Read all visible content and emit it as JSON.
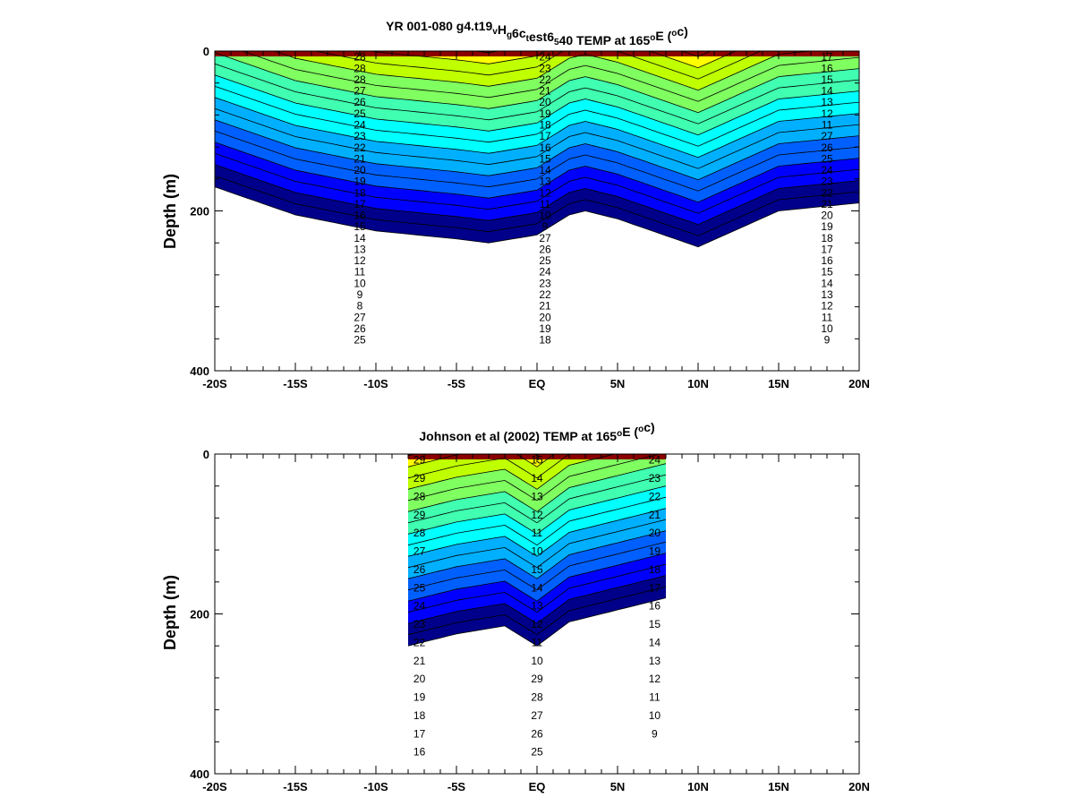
{
  "chart_data": [
    {
      "type": "heatmap",
      "title_parts": [
        "YR 001-080 g4.t19",
        "v",
        "H",
        "g",
        "6c",
        "t",
        "est6",
        "5",
        "40 TEMP at 165",
        "o",
        "E (",
        "o",
        "c)"
      ],
      "ylabel": "Depth (m)",
      "y_ticks": [
        "0",
        "200",
        "400"
      ],
      "x_ticks": [
        "-20S",
        "-15S",
        "-10S",
        "-5S",
        "EQ",
        "5N",
        "10N",
        "15N",
        "20N"
      ],
      "xlim": [
        -20,
        20
      ],
      "ylim": [
        0,
        400
      ],
      "data_extent": {
        "lat": [
          -20,
          20
        ],
        "depth": [
          0,
          380
        ]
      },
      "z_units": "°C",
      "thermocline_profile": {
        "lat": [
          -20,
          -15,
          -10,
          -5,
          -3,
          0,
          2,
          3,
          5,
          10,
          15,
          20
        ],
        "depth": [
          140,
          175,
          195,
          205,
          210,
          200,
          175,
          170,
          180,
          215,
          170,
          160
        ]
      },
      "contour_labels": [
        "28",
        "28",
        "28",
        "27",
        "26",
        "25",
        "24",
        "23",
        "22",
        "21",
        "20",
        "19",
        "18",
        "17",
        "16",
        "15",
        "14",
        "13",
        "12",
        "11",
        "10",
        "9",
        "8",
        "27",
        "26",
        "25",
        "24",
        "23",
        "22",
        "21",
        "20",
        "19",
        "18",
        "17",
        "16",
        "15",
        "14",
        "13",
        "12",
        "11",
        "10",
        "9",
        "27",
        "26",
        "25",
        "24",
        "23",
        "22",
        "21",
        "20",
        "19",
        "18",
        "17",
        "16",
        "15",
        "14",
        "13",
        "12",
        "11",
        "27",
        "26",
        "25",
        "24",
        "23",
        "22",
        "21",
        "20",
        "19",
        "18",
        "17",
        "16",
        "15",
        "14",
        "13",
        "12",
        "11",
        "10",
        "9"
      ]
    },
    {
      "type": "heatmap",
      "title_parts": [
        "Johnson et al (2002) TEMP at 165",
        "o",
        "E (",
        "o",
        "c)"
      ],
      "ylabel": "Depth (m)",
      "y_ticks": [
        "0",
        "200",
        "400"
      ],
      "x_ticks": [
        "-20S",
        "-15S",
        "-10S",
        "-5S",
        "EQ",
        "5N",
        "10N",
        "15N",
        "20N"
      ],
      "xlim": [
        -20,
        20
      ],
      "ylim": [
        0,
        400
      ],
      "data_extent": {
        "lat": [
          -8,
          8
        ],
        "depth": [
          0,
          400
        ]
      },
      "z_units": "°C",
      "thermocline_profile": {
        "lat": [
          -8,
          -5,
          -2,
          0,
          2,
          5,
          8
        ],
        "depth": [
          210,
          195,
          185,
          210,
          180,
          165,
          150
        ]
      },
      "contour_labels": [
        "29",
        "29",
        "28",
        "29",
        "28",
        "27",
        "26",
        "25",
        "24",
        "23",
        "22",
        "21",
        "20",
        "19",
        "18",
        "17",
        "16",
        "15",
        "14",
        "13",
        "12",
        "11",
        "10",
        "15",
        "14",
        "13",
        "12",
        "11",
        "10",
        "29",
        "28",
        "27",
        "26",
        "25",
        "24",
        "23",
        "22",
        "21",
        "20",
        "19",
        "18",
        "17",
        "16",
        "15",
        "14",
        "13",
        "12",
        "11",
        "10",
        "9"
      ]
    }
  ],
  "colors": {
    "colormap": [
      "#00008b",
      "#0000ff",
      "#0060ff",
      "#00b0ff",
      "#00ffff",
      "#40ffb0",
      "#80ff60",
      "#c0ff00",
      "#ffff00",
      "#ffc000",
      "#ff8000",
      "#ff3000",
      "#e00000",
      "#8b0000"
    ]
  }
}
